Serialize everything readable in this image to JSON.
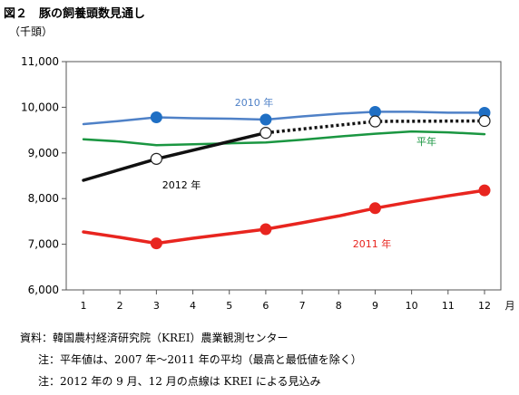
{
  "title": "図２　豚の飼養頭数見通し",
  "notes": {
    "source": "資料：韓国農村経済研究院（KREI）農業観測センター",
    "note1": "注：平年値は、2007 年～2011 年の平均（最高と最低値を除く）",
    "note2": "注：2012 年の 9 月、12 月の点線は KREI による見込み"
  },
  "chart_data": {
    "type": "line",
    "title": "図２　豚の飼養頭数見通し",
    "ylabel": "（千頭）",
    "xlabel": "月",
    "x": [
      1,
      2,
      3,
      4,
      5,
      6,
      7,
      8,
      9,
      10,
      11,
      12
    ],
    "ylim": [
      6000,
      11000
    ],
    "yticks": [
      6000,
      7000,
      8000,
      9000,
      10000,
      11000
    ],
    "ytick_labels": [
      "6,000",
      "7,000",
      "8,000",
      "9,000",
      "10,000",
      "11,000"
    ],
    "xtick_labels": [
      "1",
      "2",
      "3",
      "4",
      "5",
      "6",
      "7",
      "8",
      "9",
      "10",
      "11",
      "12"
    ],
    "grid": false,
    "series": [
      {
        "name": "2010 年",
        "color": "#4f81c7",
        "marker_color": "#1f6fc4",
        "values": [
          9630,
          9700,
          9780,
          9760,
          9750,
          9730,
          9800,
          9860,
          9900,
          9900,
          9880,
          9880
        ],
        "markers": [
          3,
          6,
          9,
          12
        ],
        "marker_style": "filled"
      },
      {
        "name": "平年",
        "color": "#1a9641",
        "values": [
          9300,
          9250,
          9170,
          9190,
          9210,
          9230,
          9290,
          9360,
          9420,
          9470,
          9450,
          9410
        ],
        "markers": [],
        "marker_style": "none"
      },
      {
        "name": "2011 年",
        "color": "#e8251f",
        "marker_color": "#e8251f",
        "values": [
          7270,
          7150,
          7020,
          7130,
          7230,
          7330,
          7470,
          7620,
          7790,
          7930,
          8060,
          8180
        ],
        "markers": [
          3,
          6,
          9,
          12
        ],
        "marker_style": "filled"
      },
      {
        "name": "2012 年",
        "color": "#111111",
        "x": [
          1,
          3,
          6
        ],
        "values": [
          8400,
          8870,
          9440
        ],
        "projection": {
          "x": [
            6,
            9,
            12
          ],
          "values": [
            9440,
            9690,
            9700
          ],
          "style": "dotted"
        },
        "markers": [
          3,
          6,
          9,
          12
        ],
        "marker_style": "hollow"
      }
    ]
  }
}
